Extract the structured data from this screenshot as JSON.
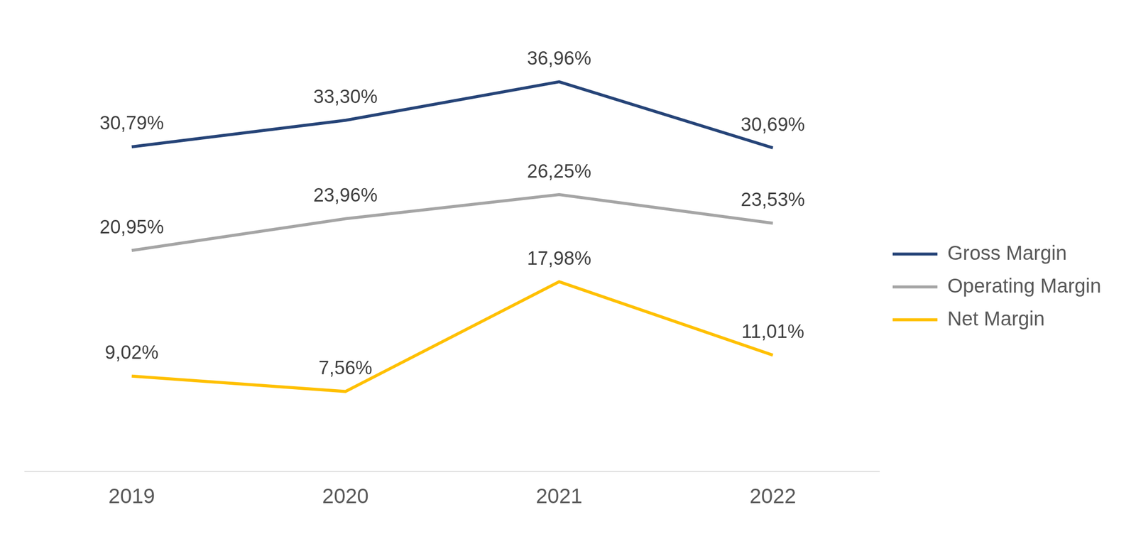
{
  "chart_data": {
    "type": "line",
    "categories": [
      "2019",
      "2020",
      "2021",
      "2022"
    ],
    "series": [
      {
        "name": "Gross Margin",
        "color": "#264478",
        "values": [
          30.79,
          33.3,
          36.96,
          30.69
        ],
        "value_labels": [
          "30,79%",
          "33,30%",
          "36,96%",
          "30,69%"
        ]
      },
      {
        "name": "Operating Margin",
        "color": "#A5A5A5",
        "values": [
          20.95,
          23.96,
          26.25,
          23.53
        ],
        "value_labels": [
          "20,95%",
          "23,96%",
          "26,25%",
          "23,53%"
        ]
      },
      {
        "name": "Net Margin",
        "color": "#FFC000",
        "values": [
          9.02,
          7.56,
          17.98,
          11.01
        ],
        "value_labels": [
          "9,02%",
          "7,56%",
          "17,98%",
          "11,01%"
        ]
      }
    ],
    "ylim": [
      0,
      40
    ],
    "yticks": [
      0,
      5,
      10,
      15,
      20,
      25,
      30,
      35,
      40
    ],
    "grid": false,
    "legend": "right",
    "data_labels": true,
    "tick_labels": "x"
  }
}
